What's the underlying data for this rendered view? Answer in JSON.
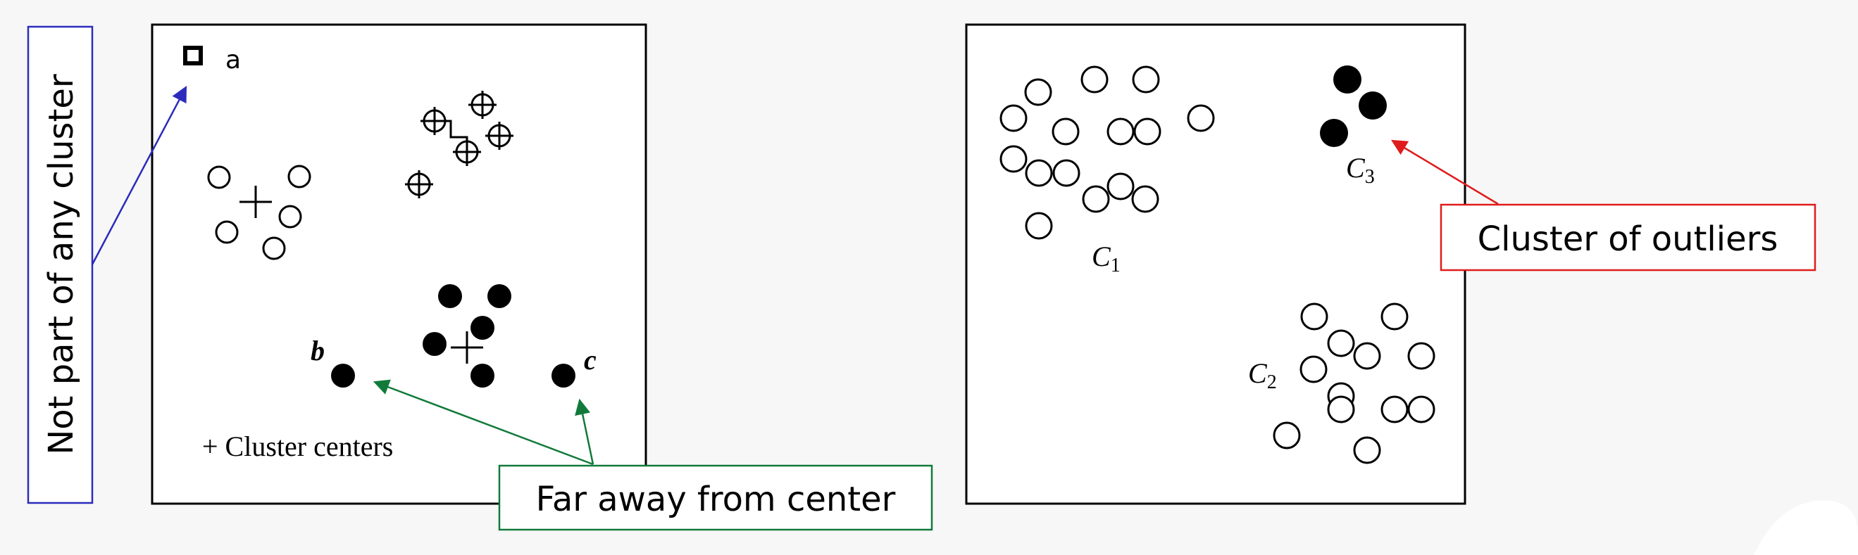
{
  "left_panel": {
    "point_a_label": "a",
    "point_b_label": "b",
    "point_c_label": "c",
    "legend_text": "+ Cluster centers"
  },
  "right_panel": {
    "cluster_labels": [
      {
        "id": "c1",
        "base": "C",
        "sub": "1"
      },
      {
        "id": "c2",
        "base": "C",
        "sub": "2"
      },
      {
        "id": "c3",
        "base": "C",
        "sub": "3"
      }
    ]
  },
  "callouts": {
    "not_part": "Not part of any cluster",
    "far_away": "Far away from center",
    "outliers": "Cluster of outliers"
  },
  "colors": {
    "blue": "#2b2bbd",
    "green": "#117a3a",
    "red": "#e01b1b",
    "black": "#000000"
  }
}
